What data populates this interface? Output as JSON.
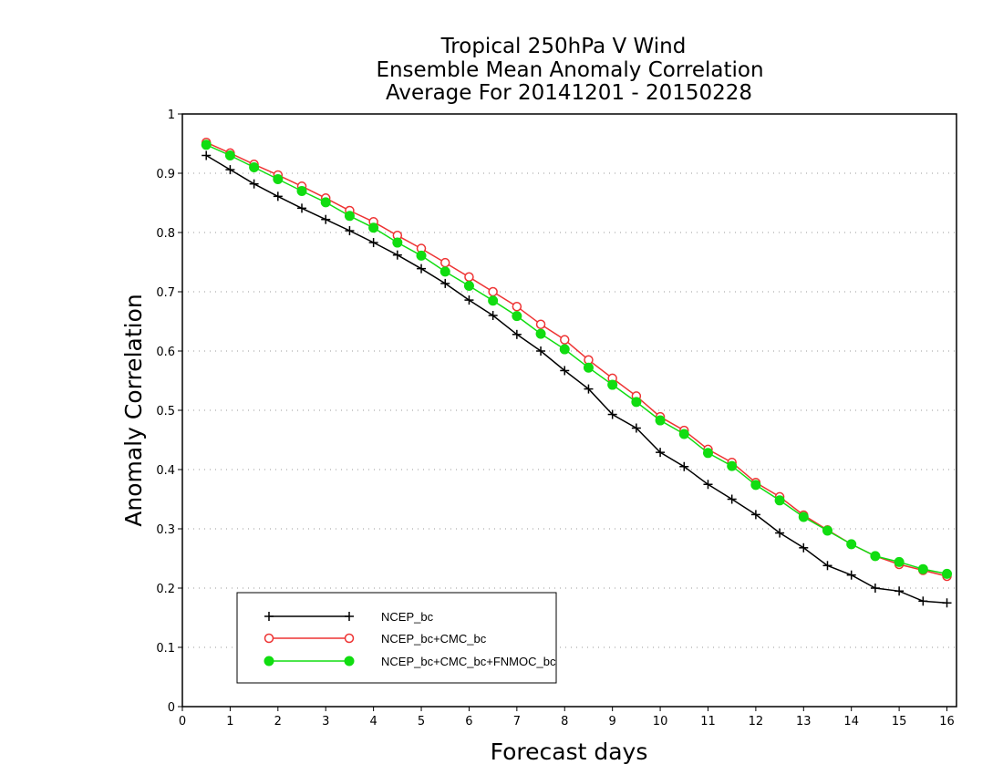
{
  "chart_data": {
    "type": "line",
    "title": [
      "Tropical 250hPa V Wind",
      "Ensemble Mean Anomaly Correlation",
      "Average For 20141201 - 20150228"
    ],
    "xlabel": "Forecast days",
    "ylabel": "Anomaly Correlation",
    "xlim": [
      0,
      16.2
    ],
    "ylim": [
      0,
      1
    ],
    "xticks": [
      "0",
      "1",
      "2",
      "3",
      "4",
      "5",
      "6",
      "7",
      "8",
      "9",
      "10",
      "11",
      "12",
      "13",
      "14",
      "15",
      "16"
    ],
    "yticks": [
      "0",
      "0.1",
      "0.2",
      "0.3",
      "0.4",
      "0.5",
      "0.6",
      "0.7",
      "0.8",
      "0.9",
      "1"
    ],
    "grid": "horizontal dotted",
    "legend_position": "bottom-left",
    "x": [
      0.5,
      1,
      1.5,
      2,
      2.5,
      3,
      3.5,
      4,
      4.5,
      5,
      5.5,
      6,
      6.5,
      7,
      7.5,
      8,
      8.5,
      9,
      9.5,
      10,
      10.5,
      11,
      11.5,
      12,
      12.5,
      13,
      13.5,
      14,
      14.5,
      15,
      15.5,
      16
    ],
    "series": [
      {
        "name": "NCEP_bc",
        "color": "#000000",
        "marker": "plus",
        "values": [
          0.93,
          0.906,
          0.882,
          0.861,
          0.841,
          0.822,
          0.803,
          0.783,
          0.762,
          0.739,
          0.714,
          0.686,
          0.66,
          0.628,
          0.6,
          0.567,
          0.536,
          0.493,
          0.47,
          0.429,
          0.405,
          0.375,
          0.35,
          0.324,
          0.293,
          0.268,
          0.238,
          0.222,
          0.2,
          0.195,
          0.178,
          0.175
        ]
      },
      {
        "name": "NCEP_bc+CMC_bc",
        "color": "#ee3333",
        "marker": "open-circle",
        "values": [
          0.952,
          0.934,
          0.915,
          0.897,
          0.878,
          0.858,
          0.837,
          0.818,
          0.795,
          0.773,
          0.749,
          0.725,
          0.7,
          0.675,
          0.645,
          0.619,
          0.585,
          0.554,
          0.524,
          0.489,
          0.466,
          0.434,
          0.412,
          0.378,
          0.354,
          0.323,
          0.298,
          0.274,
          0.254,
          0.24,
          0.23,
          0.22
        ]
      },
      {
        "name": "NCEP_bc+CMC_bc+FNMOC_bc",
        "color": "#11dd11",
        "marker": "filled-circle",
        "values": [
          0.948,
          0.93,
          0.91,
          0.89,
          0.87,
          0.851,
          0.828,
          0.808,
          0.783,
          0.761,
          0.734,
          0.71,
          0.685,
          0.659,
          0.629,
          0.603,
          0.572,
          0.543,
          0.514,
          0.483,
          0.46,
          0.428,
          0.406,
          0.374,
          0.348,
          0.32,
          0.297,
          0.274,
          0.254,
          0.244,
          0.232,
          0.224
        ]
      }
    ]
  }
}
